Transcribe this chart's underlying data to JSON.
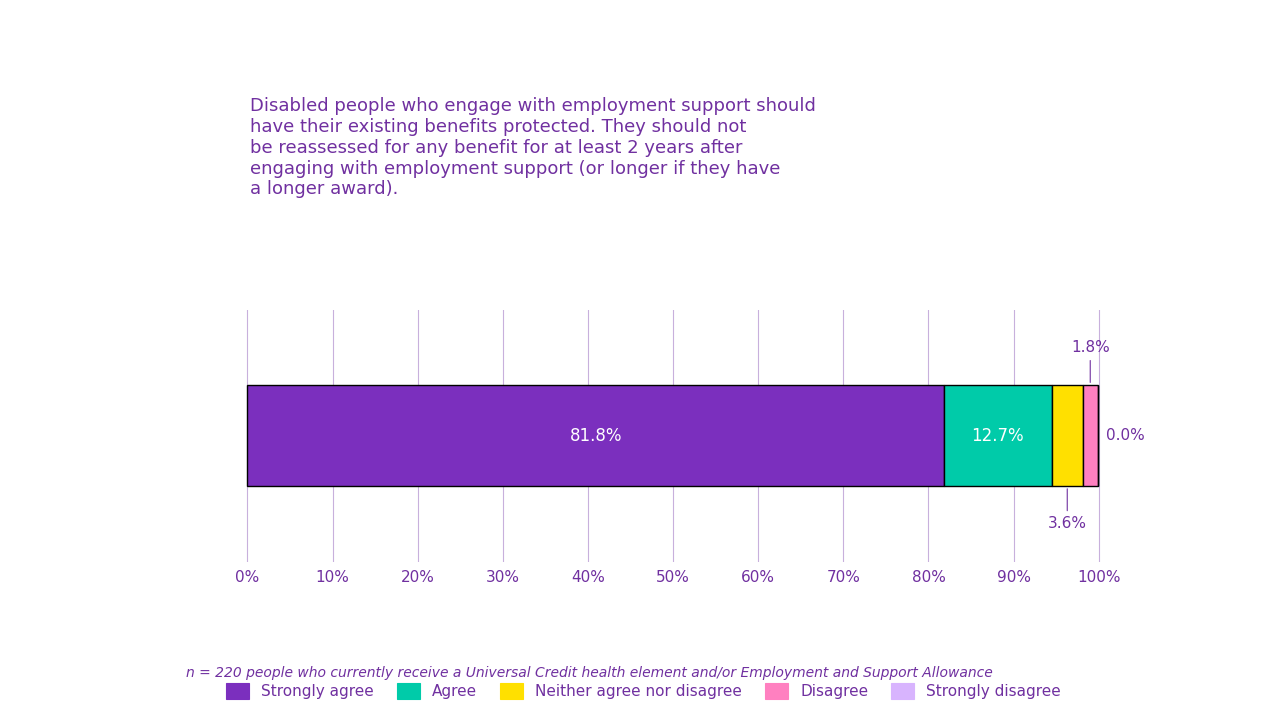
{
  "title": "Disabled people who engage with employment support should have their existing benefits protected. They should not be reassessed for any benefit for at least 2 years after engaging with employment support (or longer if they have a longer award).",
  "categories": [
    "Strongly agree",
    "Agree",
    "Neither agree nor disagree",
    "Disagree",
    "Strongly disagree"
  ],
  "values": [
    81.8,
    12.7,
    3.6,
    1.8,
    0.0
  ],
  "colors": [
    "#7B2FBE",
    "#00CBA9",
    "#FFE000",
    "#FF80C0",
    "#D8B4FE"
  ],
  "bar_labels": [
    "81.8%",
    "12.7%",
    "3.6%",
    "1.8%",
    "0.0%"
  ],
  "title_color": "#7030A0",
  "tick_color": "#7030A0",
  "grid_color": "#C8B0DC",
  "footnote": "n = 220 people who currently receive a Universal Credit health element and/or Employment and Support Allowance",
  "footnote_color": "#7030A0",
  "background_color": "#FFFFFF",
  "xlim": [
    0,
    100
  ],
  "xticks": [
    0,
    10,
    20,
    30,
    40,
    50,
    60,
    70,
    80,
    90,
    100
  ],
  "bar_height": 0.6,
  "bar_edgecolor": "#000000",
  "bar_linewidth": 1.0
}
